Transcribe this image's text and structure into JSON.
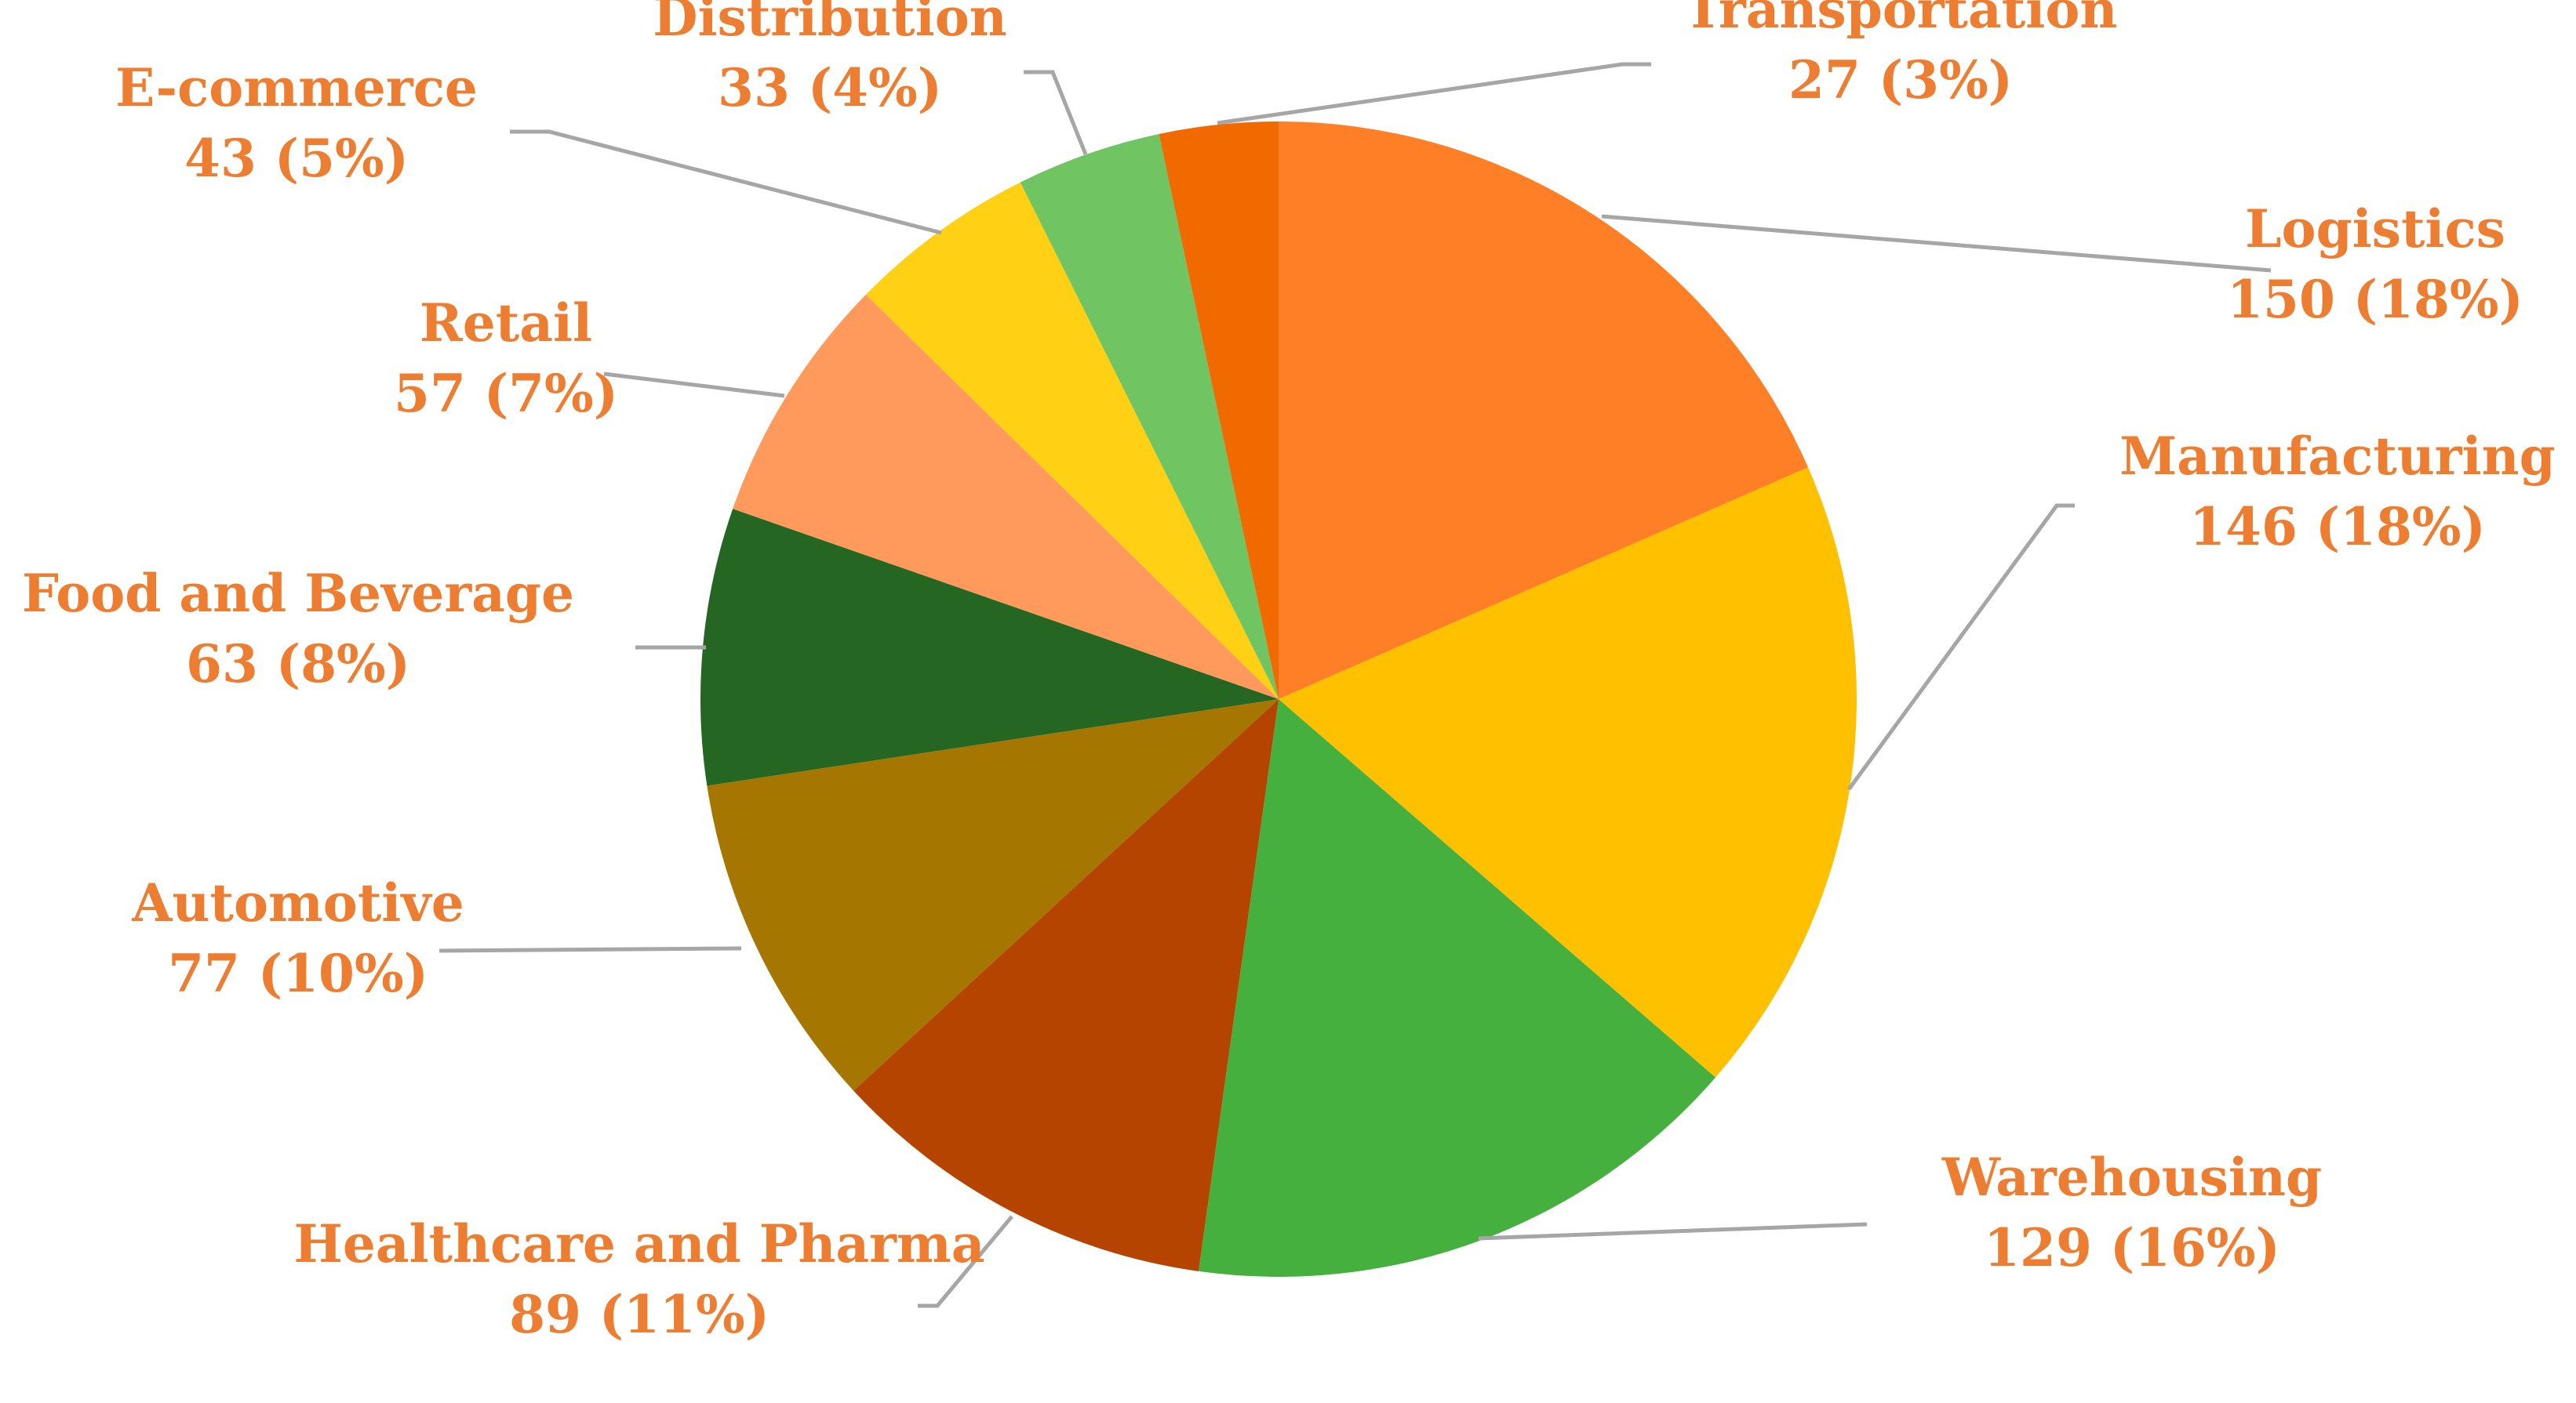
{
  "chart_data": {
    "type": "pie",
    "title": "",
    "label_color": "#ED7D31",
    "slices": [
      {
        "label": "Logistics",
        "value": 150,
        "percent": "18%",
        "color": "#FF7F27",
        "display": "150 (18%)"
      },
      {
        "label": "Manufacturing",
        "value": 146,
        "percent": "18%",
        "color": "#FFC000",
        "display": "146 (18%)"
      },
      {
        "label": "Warehousing",
        "value": 129,
        "percent": "16%",
        "color": "#45B03D",
        "display": "129 (16%)"
      },
      {
        "label": "Healthcare and Pharma",
        "value": 89,
        "percent": "11%",
        "color": "#B54400",
        "display": "89 (11%)"
      },
      {
        "label": "Automotive",
        "value": 77,
        "percent": "10%",
        "color": "#A67700",
        "display": "77 (10%)"
      },
      {
        "label": "Food and Beverage",
        "value": 63,
        "percent": "8%",
        "color": "#256622",
        "display": "63 (8%)"
      },
      {
        "label": "Retail",
        "value": 57,
        "percent": "7%",
        "color": "#FF9A5C",
        "display": "57 (7%)"
      },
      {
        "label": "E-commerce",
        "value": 43,
        "percent": "5%",
        "color": "#FFD014",
        "display": "43 (5%)"
      },
      {
        "label": "Distribution",
        "value": 33,
        "percent": "4%",
        "color": "#70C462",
        "display": "33 (4%)"
      },
      {
        "label": "Transportation",
        "value": 27,
        "percent": "3%",
        "color": "#F06A00",
        "display": "27 (3%)"
      }
    ]
  }
}
